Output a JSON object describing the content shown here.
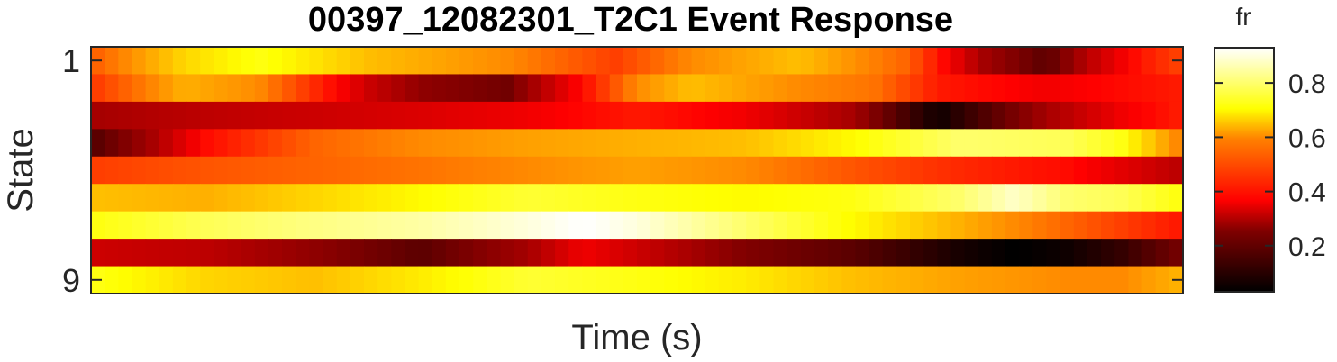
{
  "chart_data": {
    "type": "heatmap",
    "title": "00397_12082301_T2C1 Event Response",
    "xlabel": "Time (s)",
    "ylabel": "State",
    "y_tick_labels": [
      {
        "value": 1,
        "label": "1"
      },
      {
        "value": 9,
        "label": "9"
      }
    ],
    "rows": 9,
    "columns": 80,
    "colormap": "hot",
    "colorbar": {
      "title": "fr",
      "range": [
        0.03,
        0.93
      ],
      "ticks": [
        {
          "value": 0.2,
          "label": "0.2"
        },
        {
          "value": 0.4,
          "label": "0.4"
        },
        {
          "value": 0.6,
          "label": "0.6"
        },
        {
          "value": 0.8,
          "label": "0.8"
        }
      ]
    },
    "row_profiles": [
      {
        "state": 1,
        "knots": [
          [
            0,
            0.5
          ],
          [
            0.08,
            0.65
          ],
          [
            0.15,
            0.72
          ],
          [
            0.25,
            0.62
          ],
          [
            0.38,
            0.55
          ],
          [
            0.48,
            0.45
          ],
          [
            0.55,
            0.55
          ],
          [
            0.65,
            0.62
          ],
          [
            0.75,
            0.5
          ],
          [
            0.82,
            0.25
          ],
          [
            0.88,
            0.15
          ],
          [
            0.92,
            0.28
          ],
          [
            0.97,
            0.4
          ],
          [
            1.0,
            0.45
          ]
        ]
      },
      {
        "state": 2,
        "knots": [
          [
            0,
            0.45
          ],
          [
            0.08,
            0.6
          ],
          [
            0.15,
            0.55
          ],
          [
            0.25,
            0.3
          ],
          [
            0.3,
            0.22
          ],
          [
            0.38,
            0.18
          ],
          [
            0.45,
            0.38
          ],
          [
            0.5,
            0.55
          ],
          [
            0.55,
            0.62
          ],
          [
            0.65,
            0.55
          ],
          [
            0.72,
            0.52
          ],
          [
            0.78,
            0.4
          ],
          [
            0.88,
            0.35
          ],
          [
            1.0,
            0.4
          ]
        ]
      },
      {
        "state": 3,
        "knots": [
          [
            0,
            0.25
          ],
          [
            0.1,
            0.28
          ],
          [
            0.2,
            0.3
          ],
          [
            0.3,
            0.32
          ],
          [
            0.4,
            0.35
          ],
          [
            0.5,
            0.4
          ],
          [
            0.6,
            0.35
          ],
          [
            0.7,
            0.25
          ],
          [
            0.75,
            0.12
          ],
          [
            0.78,
            0.05
          ],
          [
            0.83,
            0.15
          ],
          [
            0.88,
            0.25
          ],
          [
            0.95,
            0.35
          ],
          [
            1.0,
            0.4
          ]
        ]
      },
      {
        "state": 4,
        "knots": [
          [
            0,
            0.15
          ],
          [
            0.05,
            0.25
          ],
          [
            0.1,
            0.38
          ],
          [
            0.2,
            0.5
          ],
          [
            0.3,
            0.55
          ],
          [
            0.4,
            0.58
          ],
          [
            0.5,
            0.6
          ],
          [
            0.6,
            0.62
          ],
          [
            0.7,
            0.7
          ],
          [
            0.8,
            0.8
          ],
          [
            0.9,
            0.78
          ],
          [
            0.95,
            0.72
          ],
          [
            1.0,
            0.55
          ]
        ]
      },
      {
        "state": 5,
        "knots": [
          [
            0,
            0.45
          ],
          [
            0.1,
            0.48
          ],
          [
            0.2,
            0.5
          ],
          [
            0.3,
            0.52
          ],
          [
            0.4,
            0.55
          ],
          [
            0.5,
            0.58
          ],
          [
            0.6,
            0.55
          ],
          [
            0.7,
            0.48
          ],
          [
            0.8,
            0.42
          ],
          [
            0.9,
            0.38
          ],
          [
            0.95,
            0.33
          ],
          [
            1.0,
            0.28
          ]
        ]
      },
      {
        "state": 6,
        "knots": [
          [
            0,
            0.62
          ],
          [
            0.1,
            0.6
          ],
          [
            0.2,
            0.65
          ],
          [
            0.3,
            0.7
          ],
          [
            0.4,
            0.75
          ],
          [
            0.5,
            0.72
          ],
          [
            0.6,
            0.7
          ],
          [
            0.7,
            0.72
          ],
          [
            0.8,
            0.8
          ],
          [
            0.85,
            0.88
          ],
          [
            0.9,
            0.8
          ],
          [
            0.95,
            0.78
          ],
          [
            1.0,
            0.72
          ]
        ]
      },
      {
        "state": 7,
        "knots": [
          [
            0,
            0.72
          ],
          [
            0.1,
            0.78
          ],
          [
            0.2,
            0.82
          ],
          [
            0.3,
            0.85
          ],
          [
            0.4,
            0.9
          ],
          [
            0.45,
            0.93
          ],
          [
            0.5,
            0.9
          ],
          [
            0.6,
            0.8
          ],
          [
            0.7,
            0.7
          ],
          [
            0.8,
            0.6
          ],
          [
            0.9,
            0.5
          ],
          [
            0.95,
            0.45
          ],
          [
            1.0,
            0.4
          ]
        ]
      },
      {
        "state": 8,
        "knots": [
          [
            0,
            0.3
          ],
          [
            0.1,
            0.28
          ],
          [
            0.2,
            0.22
          ],
          [
            0.3,
            0.15
          ],
          [
            0.4,
            0.25
          ],
          [
            0.45,
            0.35
          ],
          [
            0.5,
            0.3
          ],
          [
            0.6,
            0.2
          ],
          [
            0.7,
            0.15
          ],
          [
            0.8,
            0.06
          ],
          [
            0.85,
            0.03
          ],
          [
            0.9,
            0.05
          ],
          [
            0.95,
            0.1
          ],
          [
            1.0,
            0.18
          ]
        ]
      },
      {
        "state": 9,
        "knots": [
          [
            0,
            0.72
          ],
          [
            0.1,
            0.65
          ],
          [
            0.2,
            0.62
          ],
          [
            0.3,
            0.68
          ],
          [
            0.4,
            0.75
          ],
          [
            0.5,
            0.72
          ],
          [
            0.6,
            0.68
          ],
          [
            0.7,
            0.62
          ],
          [
            0.8,
            0.58
          ],
          [
            0.9,
            0.55
          ],
          [
            0.95,
            0.55
          ],
          [
            1.0,
            0.6
          ]
        ]
      }
    ]
  }
}
